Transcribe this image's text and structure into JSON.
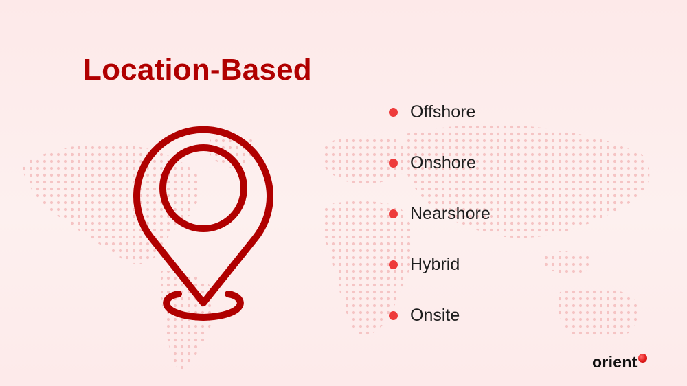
{
  "slide": {
    "title": "Location-Based",
    "items": [
      {
        "label": "Offshore"
      },
      {
        "label": "Onshore"
      },
      {
        "label": "Nearshore"
      },
      {
        "label": "Hybrid"
      },
      {
        "label": "Onsite"
      }
    ]
  },
  "logo": {
    "text": "orient"
  },
  "icons": {
    "pin": "location-pin-icon",
    "background": "world-map-dots"
  },
  "colors": {
    "title": "#b00000",
    "bullet": "#ee3b3b",
    "pin_stroke": "#b00000",
    "background": "#fdecec",
    "map_dots": "#f6c9c9",
    "logo_text": "#111111",
    "logo_dot": "#e31b1b"
  }
}
